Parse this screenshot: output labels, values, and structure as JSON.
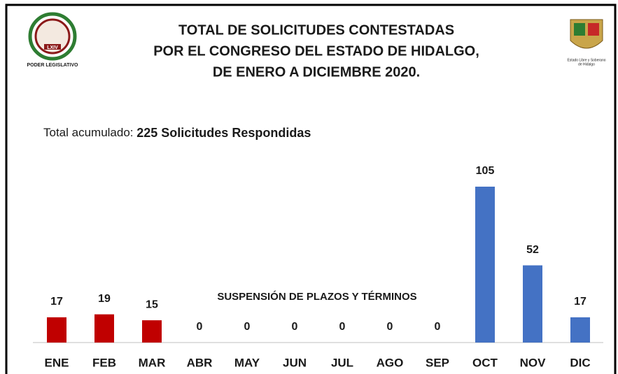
{
  "chart_data": {
    "type": "bar",
    "title": [
      "TOTAL DE SOLICITUDES CONTESTADAS",
      "POR EL CONGRESO DEL ESTADO DE HIDALGO,",
      "DE ENERO A DICIEMBRE 2020."
    ],
    "subtitle_label": "Total acumulado:",
    "subtitle": "225 Solicitudes Respondidas",
    "annotation": "SUSPENSIÓN DE PLAZOS Y TÉRMINOS",
    "logo_left": {
      "badge": "LXIV",
      "caption": "PODER LEGISLATIVO"
    },
    "logo_right": {
      "caption": [
        "Estado Libre y Soberano",
        "de Hidalgo"
      ]
    },
    "categories": [
      "ENE",
      "FEB",
      "MAR",
      "ABR",
      "MAY",
      "JUN",
      "JUL",
      "AGO",
      "SEP",
      "OCT",
      "NOV",
      "DIC"
    ],
    "values": [
      17,
      19,
      15,
      0,
      0,
      0,
      0,
      0,
      0,
      105,
      52,
      17
    ],
    "colors": [
      "#c00000",
      "#c00000",
      "#c00000",
      "#4472c4",
      "#4472c4",
      "#4472c4",
      "#4472c4",
      "#4472c4",
      "#4472c4",
      "#4472c4",
      "#4472c4",
      "#4472c4"
    ],
    "ylim": [
      0,
      105
    ]
  }
}
